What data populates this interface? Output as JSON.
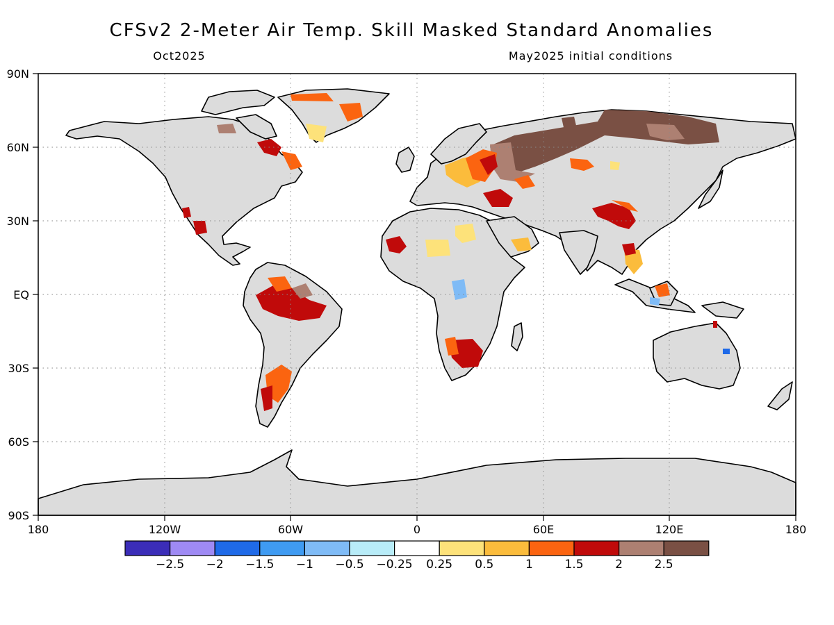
{
  "title": "CFSv2 2-Meter Air Temp. Skill Masked Standard Anomalies",
  "subtitle_left": "Oct2025",
  "subtitle_right": "May2025 initial conditions",
  "axes": {
    "lon_ticks": [
      "180",
      "120W",
      "60W",
      "0",
      "60E",
      "120E",
      "180"
    ],
    "lat_ticks": [
      "90N",
      "60N",
      "30N",
      "EQ",
      "30S",
      "60S",
      "90S"
    ]
  },
  "colors": {
    "land_no_skill": "#dcdcdc",
    "ocean": "#ffffff",
    "coast": "#000000"
  },
  "colorbar": {
    "colors": [
      "#3b2db8",
      "#9f8af4",
      "#1f6ae8",
      "#3f9bf2",
      "#7fbbf6",
      "#b8ecf8",
      "#ffffff",
      "#fde27a",
      "#fbbc3c",
      "#fb6410",
      "#c00a0a",
      "#ad8072",
      "#7a5044"
    ],
    "labels": [
      "-2.5",
      "-2",
      "-1.5",
      "-1",
      "-0.5",
      "-0.25",
      "0.25",
      "0.5",
      "1",
      "1.5",
      "2",
      "2.5"
    ]
  }
}
